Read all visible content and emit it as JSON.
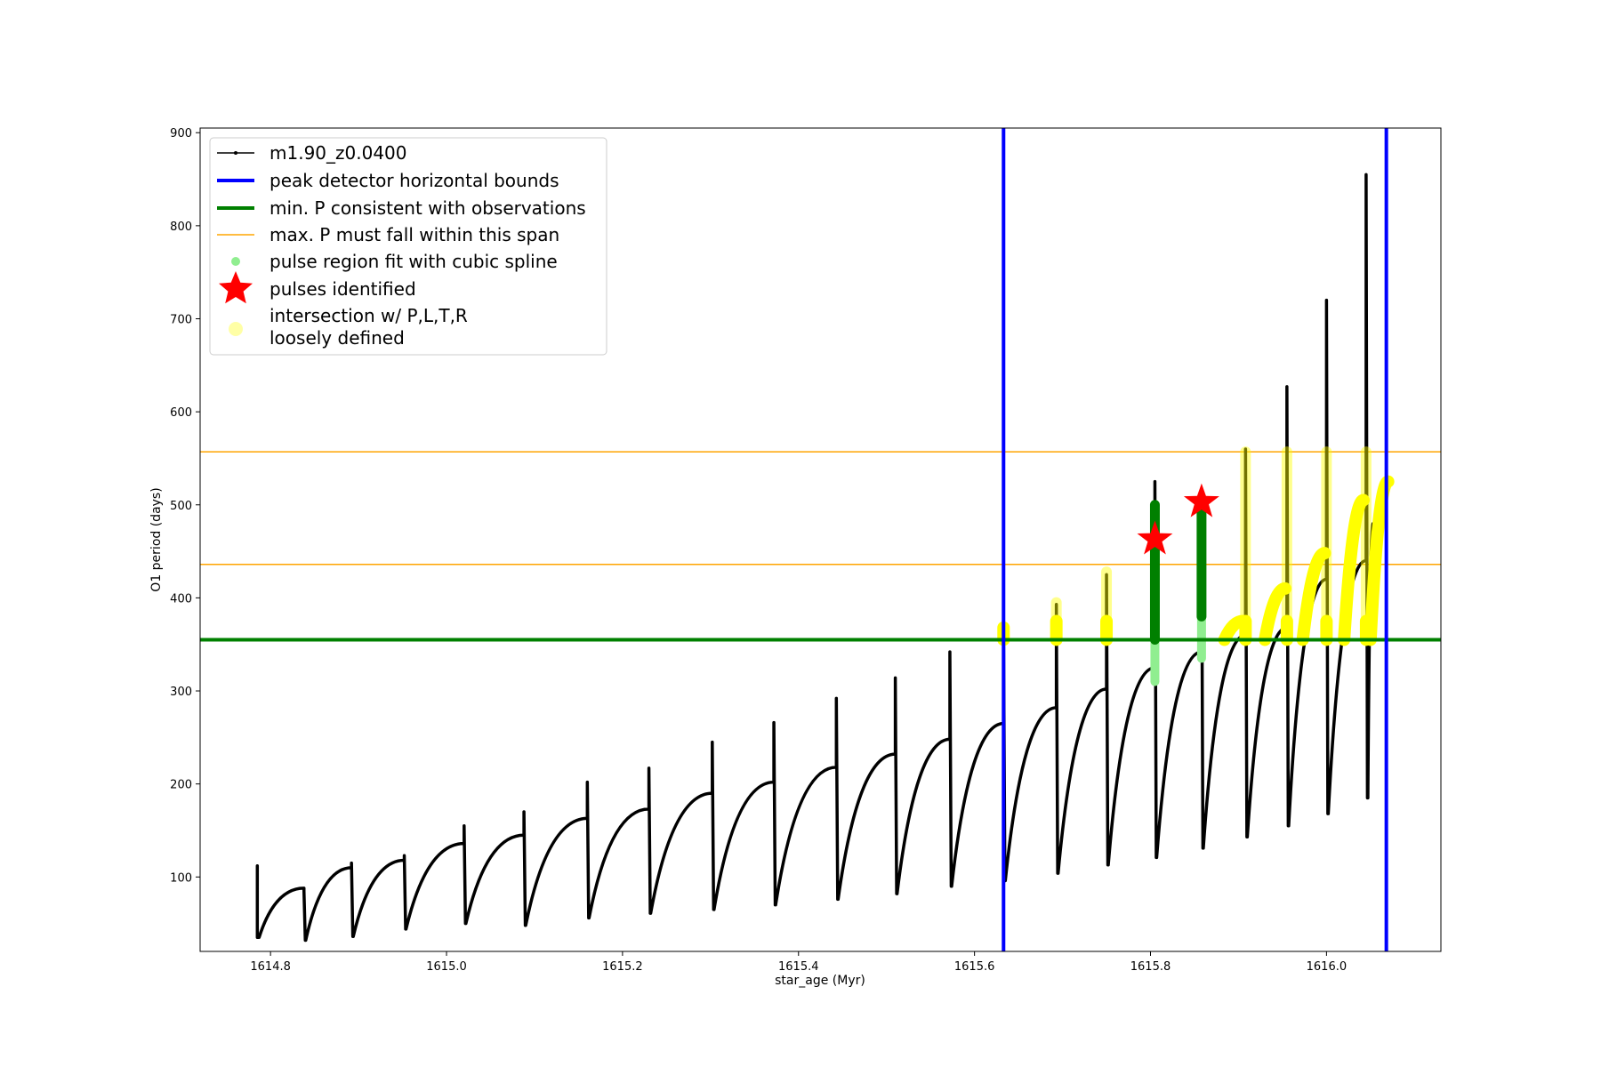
{
  "chart_data": {
    "type": "line",
    "xlabel": "star_age (Myr)",
    "ylabel": "O1 period (days)",
    "xlim": [
      1614.72,
      1616.13
    ],
    "ylim": [
      20,
      905
    ],
    "xticks": [
      1614.8,
      1615.0,
      1615.2,
      1615.4,
      1615.6,
      1615.8,
      1616.0
    ],
    "xtick_labels": [
      "1614.8",
      "1615.0",
      "1615.2",
      "1615.4",
      "1615.6",
      "1615.8",
      "1616.0"
    ],
    "yticks": [
      100,
      200,
      300,
      400,
      500,
      600,
      700,
      800,
      900
    ],
    "ytick_labels": [
      "100",
      "200",
      "300",
      "400",
      "500",
      "600",
      "700",
      "800",
      "900"
    ],
    "grid": false,
    "legend_position": "upper-left",
    "colors": {
      "track": "#000000",
      "bounds": "#0000ff",
      "min_p": "#008000",
      "max_p_span": "#ffa500",
      "spline": "#90ee90",
      "pulse": "#ff0000",
      "loose": "#ffff00"
    },
    "track": {
      "name": "m1.90_z0.0400",
      "start": {
        "x": 1614.785,
        "y": 85
      },
      "end_x": 1616.045,
      "pulses": [
        {
          "x": 1614.785,
          "top": 112,
          "min": 35,
          "end": 88
        },
        {
          "x": 1614.838,
          "top": 85,
          "min": 32,
          "end": 110
        },
        {
          "x": 1614.892,
          "top": 115,
          "min": 36,
          "end": 118
        },
        {
          "x": 1614.952,
          "top": 123,
          "min": 44,
          "end": 136
        },
        {
          "x": 1615.02,
          "top": 155,
          "min": 50,
          "end": 145
        },
        {
          "x": 1615.088,
          "top": 170,
          "min": 48,
          "end": 163
        },
        {
          "x": 1615.16,
          "top": 202,
          "min": 56,
          "end": 173
        },
        {
          "x": 1615.23,
          "top": 217,
          "min": 61,
          "end": 190
        },
        {
          "x": 1615.302,
          "top": 245,
          "min": 65,
          "end": 202
        },
        {
          "x": 1615.372,
          "top": 266,
          "min": 70,
          "end": 218
        },
        {
          "x": 1615.443,
          "top": 292,
          "min": 76,
          "end": 232
        },
        {
          "x": 1615.51,
          "top": 314,
          "min": 82,
          "end": 248
        },
        {
          "x": 1615.572,
          "top": 342,
          "min": 90,
          "end": 265
        },
        {
          "x": 1615.633,
          "top": 362,
          "min": 96,
          "end": 282
        },
        {
          "x": 1615.693,
          "top": 393,
          "min": 104,
          "end": 302
        },
        {
          "x": 1615.75,
          "top": 425,
          "min": 113,
          "end": 325
        },
        {
          "x": 1615.805,
          "top": 525,
          "min": 121,
          "end": 342
        },
        {
          "x": 1615.858,
          "top": 498,
          "min": 131,
          "end": 360
        },
        {
          "x": 1615.908,
          "top": 560,
          "min": 143,
          "end": 368
        },
        {
          "x": 1615.955,
          "top": 627,
          "min": 155,
          "end": 420
        },
        {
          "x": 1616.0,
          "top": 720,
          "min": 168,
          "end": 440
        },
        {
          "x": 1616.045,
          "top": 855,
          "min": 185,
          "end": 480
        }
      ]
    },
    "bounds": {
      "name": "peak detector horizontal bounds",
      "x": [
        1615.633,
        1616.068
      ]
    },
    "min_p": {
      "name": "min. P consistent with observations",
      "y": 355
    },
    "max_p_span": {
      "name": "max. P must fall within this span",
      "y": [
        436,
        557
      ]
    },
    "spline_regions": {
      "name": "pulse region fit with cubic spline",
      "regions": [
        {
          "x": 1615.805,
          "y0": 310,
          "y1": 500
        },
        {
          "x": 1615.858,
          "y0": 335,
          "y1": 498
        }
      ]
    },
    "pulses_identified": {
      "name": "pulses identified",
      "points": [
        {
          "x": 1615.805,
          "y": 463
        },
        {
          "x": 1615.858,
          "y": 503
        }
      ]
    },
    "loose": {
      "name": "intersection w/ P,L,T,R\nloosely defined",
      "spikes": [
        {
          "x": 1615.633,
          "y0": 355,
          "y1": 368
        },
        {
          "x": 1615.693,
          "y0": 355,
          "y1": 395
        },
        {
          "x": 1615.75,
          "y0": 355,
          "y1": 428
        },
        {
          "x": 1615.908,
          "y0": 355,
          "y1": 557
        },
        {
          "x": 1615.955,
          "y0": 355,
          "y1": 557
        },
        {
          "x": 1616.0,
          "y0": 355,
          "y1": 557
        },
        {
          "x": 1616.045,
          "y0": 355,
          "y1": 557
        }
      ],
      "arcs": [
        {
          "x0": 1615.884,
          "x1": 1615.905,
          "y1": 375
        },
        {
          "x0": 1615.93,
          "x1": 1615.953,
          "y1": 410
        },
        {
          "x0": 1615.973,
          "x1": 1615.998,
          "y1": 448
        },
        {
          "x0": 1616.02,
          "x1": 1616.042,
          "y1": 505
        },
        {
          "x0": 1616.05,
          "x1": 1616.07,
          "y1": 525
        }
      ]
    }
  }
}
